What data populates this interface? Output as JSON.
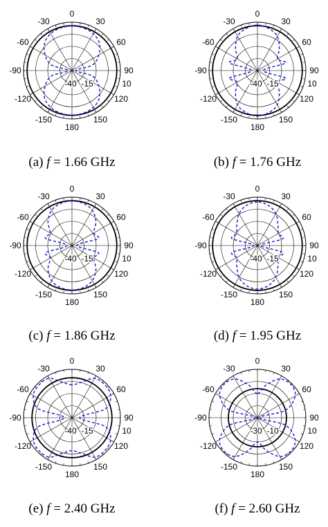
{
  "chart_data": [
    {
      "type": "polar",
      "caption": {
        "prefix": "(a)",
        "var": "f",
        "eq": "=",
        "value": "1.66",
        "unit": "GHz"
      },
      "angle_labels": [
        "0",
        "-30",
        "-60",
        "-90",
        "-120",
        "-150",
        "180",
        "150",
        "120",
        "90",
        "60",
        "30"
      ],
      "radial_labels": [
        "-40",
        "-15",
        "10"
      ],
      "rlim": [
        -40,
        10
      ],
      "series": [
        {
          "style": "solid",
          "color": "#000000",
          "r_const": 6.3
        },
        {
          "style": "dashed",
          "color": "#1f1fd6",
          "theta": [
            0,
            15,
            30,
            45,
            60,
            75,
            90,
            105,
            120,
            135,
            150,
            165,
            180,
            195,
            210,
            225,
            240,
            255,
            270,
            285,
            300,
            315,
            330,
            345
          ],
          "r": [
            6,
            5.5,
            4,
            0,
            -8,
            -18,
            -36,
            -18,
            -8,
            0,
            4,
            5.5,
            6,
            5.5,
            4,
            0,
            -8,
            -18,
            -36,
            -18,
            -8,
            0,
            4,
            5.5
          ]
        }
      ]
    },
    {
      "type": "polar",
      "caption": {
        "prefix": "(b)",
        "var": "f",
        "eq": "=",
        "value": "1.76",
        "unit": "GHz"
      },
      "angle_labels": [
        "0",
        "-30",
        "-60",
        "-90",
        "-120",
        "-150",
        "180",
        "150",
        "120",
        "90",
        "60",
        "30"
      ],
      "radial_labels": [
        "-40",
        "-15",
        "10"
      ],
      "rlim": [
        -40,
        10
      ],
      "series": [
        {
          "style": "solid",
          "color": "#000000",
          "r_const": 6.3
        },
        {
          "style": "dashed",
          "color": "#1f1fd6",
          "theta": [
            0,
            15,
            30,
            45,
            60,
            75,
            90,
            105,
            120,
            135,
            150,
            165,
            180,
            195,
            210,
            225,
            240,
            255,
            270,
            285,
            300,
            315,
            330,
            345
          ],
          "r": [
            7,
            5,
            1,
            -8,
            -16,
            -10,
            -34,
            -10,
            -16,
            -8,
            1,
            5,
            7,
            5,
            1,
            -8,
            -16,
            -10,
            -34,
            -10,
            -16,
            -8,
            1,
            5
          ]
        }
      ]
    },
    {
      "type": "polar",
      "caption": {
        "prefix": "(c)",
        "var": "f",
        "eq": "=",
        "value": "1.86",
        "unit": "GHz"
      },
      "angle_labels": [
        "0",
        "-30",
        "-60",
        "-90",
        "-120",
        "-150",
        "180",
        "150",
        "120",
        "90",
        "60",
        "30"
      ],
      "radial_labels": [
        "-40",
        "-15",
        "10"
      ],
      "rlim": [
        -40,
        10
      ],
      "series": [
        {
          "style": "solid",
          "color": "#000000",
          "r_const": 6.3
        },
        {
          "style": "dashed",
          "color": "#1f1fd6",
          "theta": [
            0,
            15,
            30,
            45,
            60,
            75,
            90,
            105,
            120,
            135,
            150,
            165,
            180,
            195,
            210,
            225,
            240,
            255,
            270,
            285,
            300,
            315,
            330,
            345
          ],
          "r": [
            6,
            5,
            2,
            -5,
            -14,
            -12,
            -35,
            -12,
            -14,
            -5,
            2,
            5,
            6,
            5,
            2,
            -5,
            -14,
            -12,
            -35,
            -12,
            -14,
            -5,
            2,
            5
          ]
        }
      ]
    },
    {
      "type": "polar",
      "caption": {
        "prefix": "(d)",
        "var": "f",
        "eq": "=",
        "value": "1.95",
        "unit": "GHz"
      },
      "angle_labels": [
        "0",
        "-30",
        "-60",
        "-90",
        "-120",
        "-150",
        "180",
        "150",
        "120",
        "90",
        "60",
        "30"
      ],
      "radial_labels": [
        "-40",
        "-15",
        "10"
      ],
      "rlim": [
        -40,
        10
      ],
      "series": [
        {
          "style": "solid",
          "color": "#000000",
          "r_const": 6.3
        },
        {
          "style": "dashed",
          "color": "#1f1fd6",
          "theta": [
            0,
            15,
            30,
            45,
            60,
            75,
            90,
            105,
            120,
            135,
            150,
            165,
            180,
            195,
            210,
            225,
            240,
            255,
            270,
            285,
            300,
            315,
            330,
            345
          ],
          "r": [
            5,
            3,
            -2,
            -10,
            -15,
            -13,
            -36,
            -13,
            -15,
            -10,
            -2,
            3,
            5,
            3,
            -2,
            -10,
            -15,
            -13,
            -36,
            -13,
            -15,
            -10,
            -2,
            3
          ]
        }
      ]
    },
    {
      "type": "polar",
      "caption": {
        "prefix": "(e)",
        "var": "f",
        "eq": "=",
        "value": "2.40",
        "unit": "GHz"
      },
      "angle_labels": [
        "0",
        "-30",
        "-60",
        "-90",
        "-120",
        "-150",
        "180",
        "150",
        "120",
        "90",
        "60",
        "30"
      ],
      "radial_labels": [
        "-40",
        "-15",
        "10"
      ],
      "rlim": [
        -40,
        10
      ],
      "series": [
        {
          "style": "solid",
          "color": "#000000",
          "r_const": 1.3
        },
        {
          "style": "dashed",
          "color": "#1f1fd6",
          "theta": [
            0,
            15,
            30,
            45,
            60,
            75,
            90,
            105,
            120,
            135,
            150,
            165,
            180,
            195,
            210,
            225,
            240,
            255,
            270,
            285,
            300,
            315,
            330,
            345
          ],
          "r": [
            -6,
            -2,
            7,
            8,
            6,
            -4,
            -32,
            -4,
            6,
            8,
            7,
            -2,
            -6,
            -2,
            7,
            8,
            6,
            -4,
            -32,
            -4,
            6,
            8,
            7,
            -2
          ]
        }
      ]
    },
    {
      "type": "polar",
      "caption": {
        "prefix": "(f)",
        "var": "f",
        "eq": "=",
        "value": "2.60",
        "unit": "GHz"
      },
      "angle_labels": [
        "0",
        "-30",
        "-60",
        "-90",
        "-120",
        "-150",
        "180",
        "150",
        "120",
        "90",
        "60",
        "30"
      ],
      "radial_labels": [
        "-30",
        "-10",
        "10"
      ],
      "rlim": [
        -30,
        10
      ],
      "series": [
        {
          "style": "solid",
          "color": "#000000",
          "r_const": -6
        },
        {
          "style": "dashed",
          "color": "#1f1fd6",
          "theta": [
            0,
            15,
            30,
            45,
            60,
            75,
            90,
            105,
            120,
            135,
            150,
            165,
            180,
            195,
            210,
            225,
            240,
            255,
            270,
            285,
            300,
            315,
            330,
            345
          ],
          "r": [
            -10,
            -2,
            7,
            9,
            6,
            -6,
            -28,
            -6,
            6,
            9,
            7,
            -2,
            -10,
            -2,
            7,
            9,
            6,
            -6,
            -28,
            -6,
            6,
            9,
            7,
            -2
          ]
        }
      ]
    }
  ]
}
